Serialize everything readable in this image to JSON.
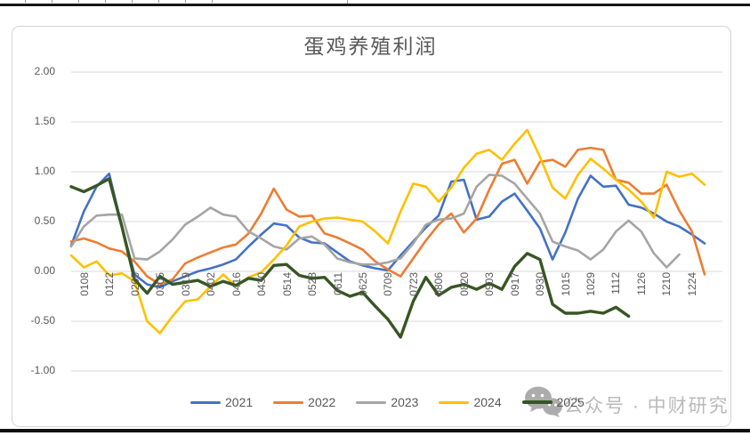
{
  "page": {
    "top_bar_color": "#161616",
    "bottom_bar_color": "#101010",
    "watermark": {
      "icon": "wechat-icon",
      "icon_color": "#a6a6a6",
      "text": "公众号 · 中财研究",
      "text_color": "#b4b4b4"
    }
  },
  "chart_data": {
    "type": "line",
    "title": "蛋鸡养殖利润",
    "title_color": "#595959",
    "grid": true,
    "gridline_color": "#d9d9d9",
    "legend_position": "bottom",
    "x_label_rotation": 90,
    "ylim": [
      -1.0,
      2.0
    ],
    "y_ticks": [
      "2.00",
      "1.50",
      "1.00",
      "0.50",
      "0.00",
      "-0.50",
      "-1.00"
    ],
    "x_labels": [
      "0108",
      "0122",
      "0205",
      "0305",
      "0319",
      "0402",
      "0416",
      "0430",
      "0514",
      "0528",
      "0611",
      "0625",
      "0709",
      "0723",
      "0806",
      "0820",
      "0903",
      "0917",
      "0930",
      "1015",
      "1029",
      "1112",
      "1126",
      "1210",
      "1224"
    ],
    "x_labels_every_other_point": true,
    "series": [
      {
        "name": "2021",
        "color": "#4472C4",
        "width": 2.6,
        "values": [
          0.26,
          0.6,
          0.85,
          0.98,
          0.45,
          -0.03,
          -0.13,
          -0.16,
          -0.1,
          -0.05,
          0.0,
          0.03,
          0.07,
          0.12,
          0.25,
          0.37,
          0.48,
          0.46,
          0.34,
          0.29,
          0.28,
          0.19,
          0.1,
          0.06,
          0.03,
          0.01,
          0.16,
          0.3,
          0.44,
          0.56,
          0.9,
          0.92,
          0.52,
          0.55,
          0.7,
          0.78,
          0.61,
          0.43,
          0.12,
          0.39,
          0.73,
          0.96,
          0.85,
          0.86,
          0.67,
          0.64,
          0.58,
          0.5,
          0.45,
          0.37,
          0.28
        ]
      },
      {
        "name": "2022",
        "color": "#ED7D31",
        "width": 2.6,
        "values": [
          0.3,
          0.33,
          0.29,
          0.23,
          0.2,
          0.1,
          -0.05,
          -0.13,
          -0.08,
          0.08,
          0.14,
          0.19,
          0.24,
          0.27,
          0.38,
          0.58,
          0.83,
          0.62,
          0.55,
          0.56,
          0.38,
          0.34,
          0.28,
          0.22,
          0.1,
          0.02,
          -0.05,
          0.13,
          0.31,
          0.47,
          0.58,
          0.39,
          0.53,
          0.82,
          1.08,
          1.12,
          0.88,
          1.1,
          1.12,
          1.05,
          1.22,
          1.24,
          1.22,
          0.92,
          0.89,
          0.78,
          0.78,
          0.87,
          0.61,
          0.4,
          -0.03
        ]
      },
      {
        "name": "2023",
        "color": "#A5A5A5",
        "width": 2.6,
        "values": [
          0.25,
          0.45,
          0.56,
          0.57,
          0.57,
          0.13,
          0.12,
          0.2,
          0.32,
          0.47,
          0.55,
          0.64,
          0.57,
          0.55,
          0.4,
          0.33,
          0.25,
          0.22,
          0.33,
          0.35,
          0.27,
          0.13,
          0.09,
          0.07,
          0.07,
          0.09,
          0.13,
          0.28,
          0.47,
          0.52,
          0.53,
          0.58,
          0.85,
          0.97,
          0.96,
          0.88,
          0.73,
          0.58,
          0.3,
          0.25,
          0.21,
          0.12,
          0.22,
          0.4,
          0.51,
          0.4,
          0.18,
          0.04,
          0.17
        ]
      },
      {
        "name": "2024",
        "color": "#FFC000",
        "width": 2.6,
        "values": [
          0.16,
          0.04,
          0.1,
          -0.04,
          -0.02,
          -0.1,
          -0.5,
          -0.62,
          -0.45,
          -0.3,
          -0.28,
          -0.15,
          -0.03,
          -0.15,
          -0.06,
          -0.01,
          0.12,
          0.26,
          0.45,
          0.5,
          0.53,
          0.54,
          0.52,
          0.5,
          0.4,
          0.28,
          0.6,
          0.88,
          0.85,
          0.7,
          0.84,
          1.04,
          1.18,
          1.22,
          1.12,
          1.28,
          1.42,
          1.15,
          0.84,
          0.73,
          0.97,
          1.13,
          1.03,
          0.92,
          0.82,
          0.7,
          0.54,
          1.0,
          0.95,
          0.98,
          0.87
        ]
      },
      {
        "name": "2025",
        "color": "#375623",
        "width": 3.4,
        "values": [
          0.85,
          0.8,
          0.86,
          0.93,
          0.45,
          -0.08,
          -0.22,
          -0.05,
          -0.13,
          -0.11,
          -0.09,
          -0.15,
          -0.1,
          -0.14,
          -0.07,
          -0.09,
          0.06,
          0.07,
          -0.04,
          -0.07,
          -0.06,
          -0.19,
          -0.25,
          -0.21,
          -0.35,
          -0.48,
          -0.66,
          -0.3,
          -0.06,
          -0.24,
          -0.16,
          -0.13,
          -0.18,
          -0.12,
          -0.18,
          0.05,
          0.18,
          0.12,
          -0.33,
          -0.42,
          -0.42,
          -0.4,
          -0.42,
          -0.36,
          -0.45
        ]
      }
    ]
  }
}
